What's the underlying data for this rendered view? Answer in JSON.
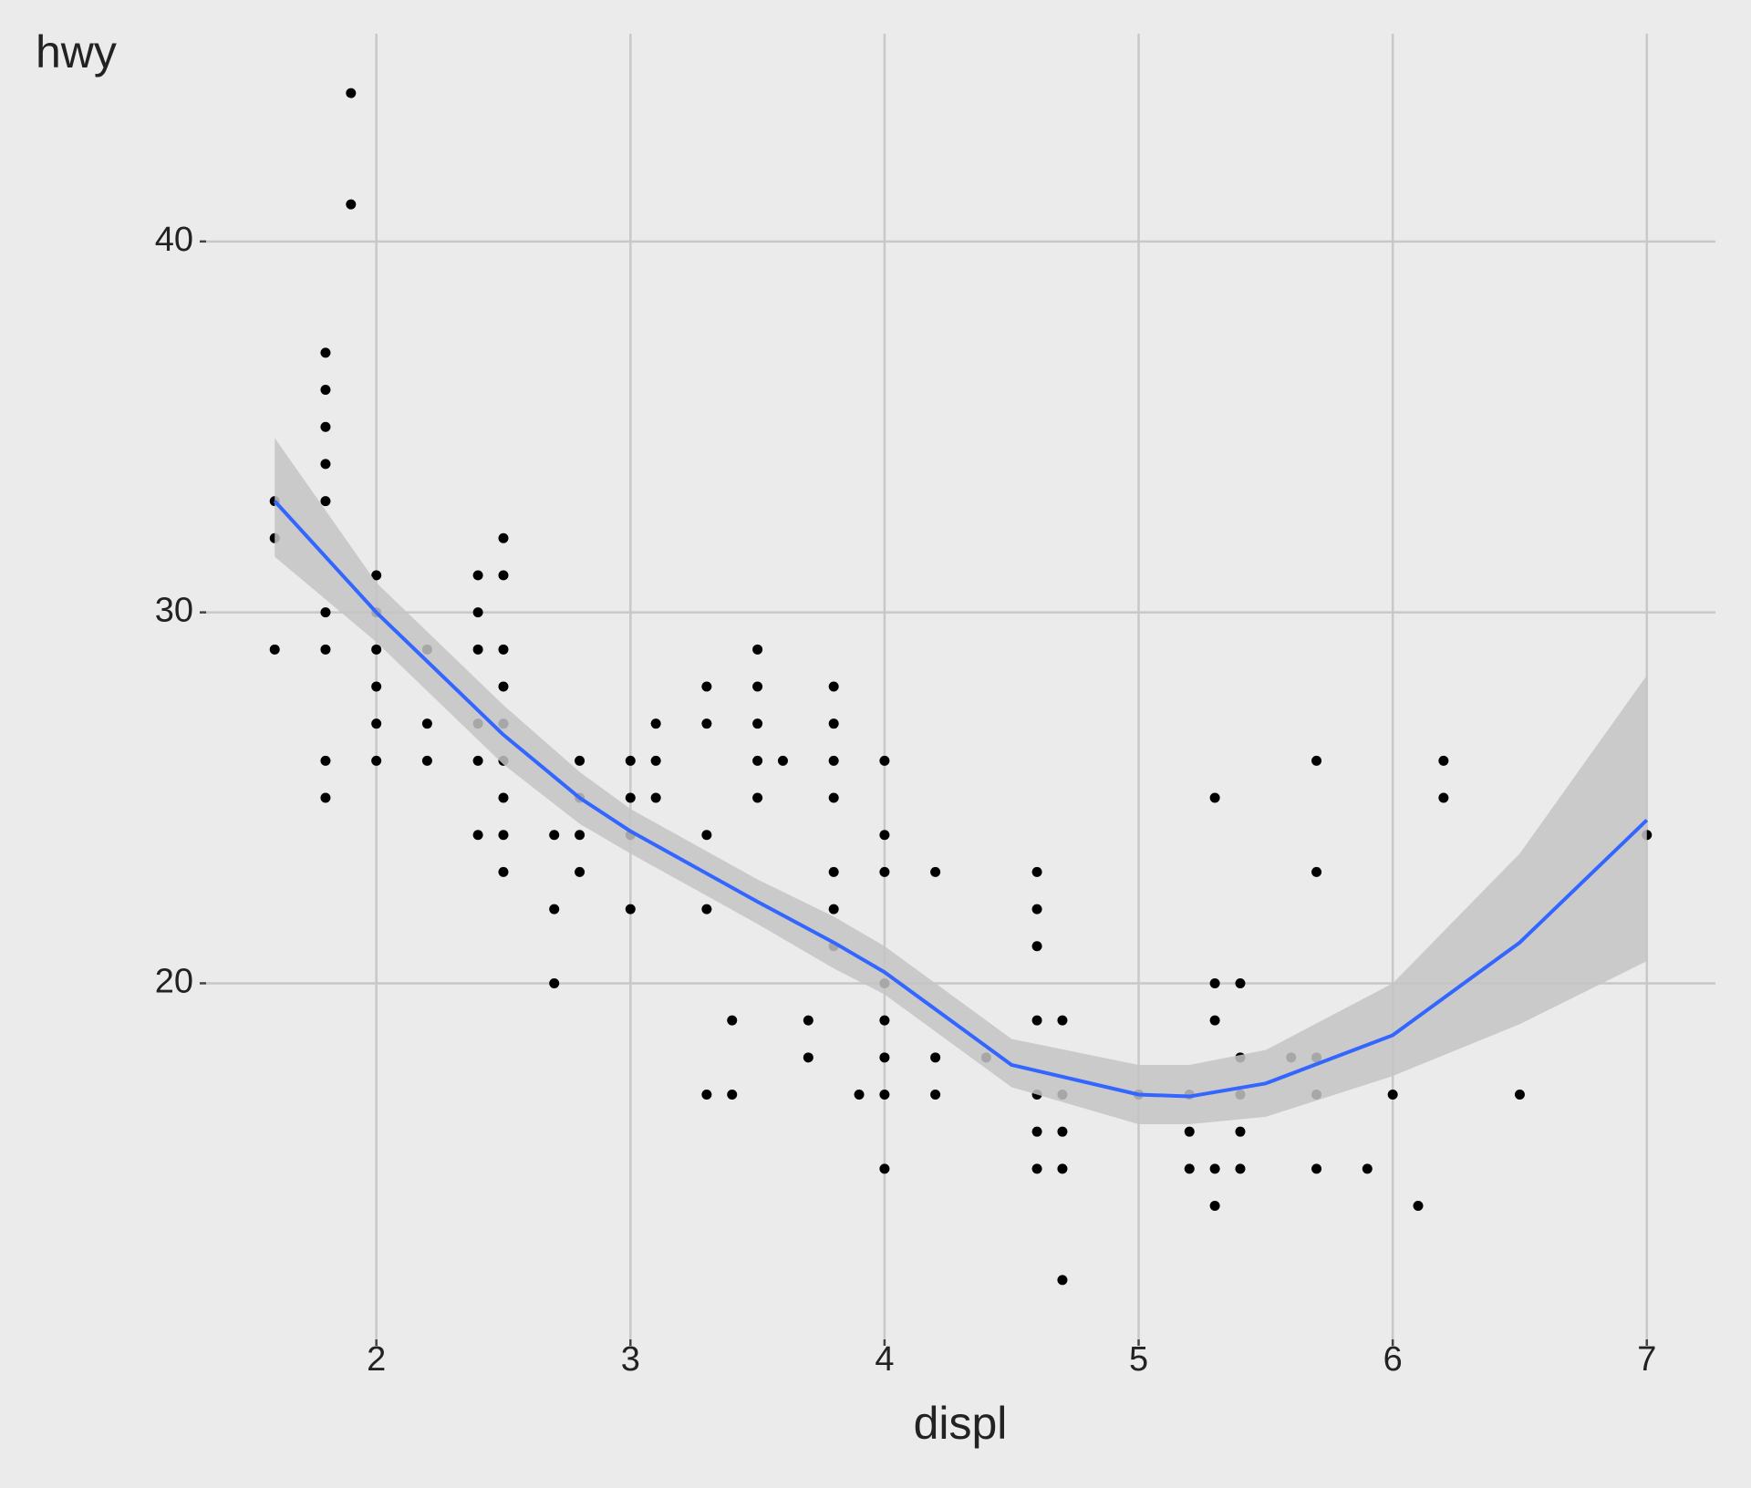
{
  "chart_data": {
    "type": "scatter",
    "x_label": "displ",
    "y_label": "hwy",
    "x": [
      1.6,
      1.6,
      1.6,
      1.8,
      1.8,
      1.8,
      1.8,
      1.8,
      1.8,
      1.8,
      1.8,
      1.8,
      1.9,
      1.9,
      2.0,
      2.0,
      2.0,
      2.0,
      2.0,
      2.0,
      2.2,
      2.2,
      2.2,
      2.4,
      2.4,
      2.4,
      2.4,
      2.4,
      2.4,
      2.5,
      2.5,
      2.5,
      2.5,
      2.5,
      2.5,
      2.5,
      2.5,
      2.5,
      2.7,
      2.7,
      2.7,
      2.8,
      2.8,
      2.8,
      2.8,
      3.0,
      3.0,
      3.0,
      3.0,
      3.1,
      3.1,
      3.1,
      3.3,
      3.3,
      3.3,
      3.3,
      3.3,
      3.4,
      3.4,
      3.5,
      3.5,
      3.5,
      3.5,
      3.5,
      3.6,
      3.7,
      3.7,
      3.8,
      3.8,
      3.8,
      3.8,
      3.8,
      3.8,
      3.8,
      3.9,
      4.0,
      4.0,
      4.0,
      4.0,
      4.0,
      4.0,
      4.0,
      4.0,
      4.2,
      4.2,
      4.2,
      4.4,
      4.6,
      4.6,
      4.6,
      4.6,
      4.6,
      4.6,
      4.6,
      4.7,
      4.7,
      4.7,
      4.7,
      4.7,
      5.0,
      5.2,
      5.2,
      5.2,
      5.3,
      5.3,
      5.3,
      5.3,
      5.3,
      5.4,
      5.4,
      5.4,
      5.4,
      5.4,
      5.6,
      5.7,
      5.7,
      5.7,
      5.7,
      5.7,
      5.9,
      6.0,
      6.1,
      6.2,
      6.2,
      6.5,
      7.0
    ],
    "y": [
      33,
      32,
      29,
      37,
      36,
      35,
      34,
      33,
      30,
      29,
      26,
      25,
      44,
      41,
      31,
      30,
      29,
      28,
      27,
      26,
      29,
      27,
      26,
      31,
      30,
      29,
      27,
      26,
      24,
      32,
      31,
      29,
      28,
      27,
      26,
      25,
      24,
      23,
      24,
      22,
      20,
      26,
      25,
      24,
      23,
      26,
      25,
      24,
      22,
      27,
      26,
      25,
      28,
      27,
      24,
      22,
      17,
      19,
      17,
      29,
      28,
      27,
      26,
      25,
      26,
      19,
      18,
      28,
      27,
      26,
      25,
      23,
      22,
      21,
      17,
      26,
      24,
      23,
      20,
      19,
      18,
      17,
      15,
      23,
      18,
      17,
      18,
      23,
      22,
      21,
      19,
      17,
      16,
      15,
      19,
      17,
      16,
      15,
      12,
      17,
      17,
      16,
      15,
      25,
      20,
      19,
      15,
      14,
      20,
      18,
      17,
      16,
      15,
      18,
      26,
      23,
      18,
      17,
      15,
      15,
      17,
      14,
      26,
      25,
      17,
      24
    ],
    "color": "#000000",
    "smooth": {
      "color": "#3366ff",
      "band_color": "#c4c4c4",
      "x": [
        1.6,
        2.0,
        2.5,
        2.8,
        3.0,
        3.5,
        3.8,
        4.0,
        4.5,
        5.0,
        5.2,
        5.5,
        6.0,
        6.5,
        7.0
      ],
      "y": [
        33.0,
        30.0,
        26.7,
        25.0,
        24.1,
        22.2,
        21.1,
        20.3,
        17.8,
        17.0,
        16.95,
        17.3,
        18.6,
        21.1,
        24.4
      ],
      "lower": [
        31.5,
        29.2,
        25.9,
        24.3,
        23.5,
        21.6,
        20.4,
        19.7,
        17.2,
        16.2,
        16.2,
        16.4,
        17.5,
        18.9,
        20.6
      ],
      "upper": [
        34.7,
        30.8,
        27.5,
        25.7,
        24.7,
        22.8,
        21.8,
        21.0,
        18.5,
        17.8,
        17.8,
        18.2,
        20.0,
        23.5,
        28.3
      ]
    },
    "xlim": [
      1.33,
      7.27
    ],
    "ylim": [
      10.4,
      45.6
    ],
    "xticks": [
      2,
      3,
      4,
      5,
      6,
      7
    ],
    "yticks": [
      20,
      30,
      40
    ],
    "grid": true
  }
}
